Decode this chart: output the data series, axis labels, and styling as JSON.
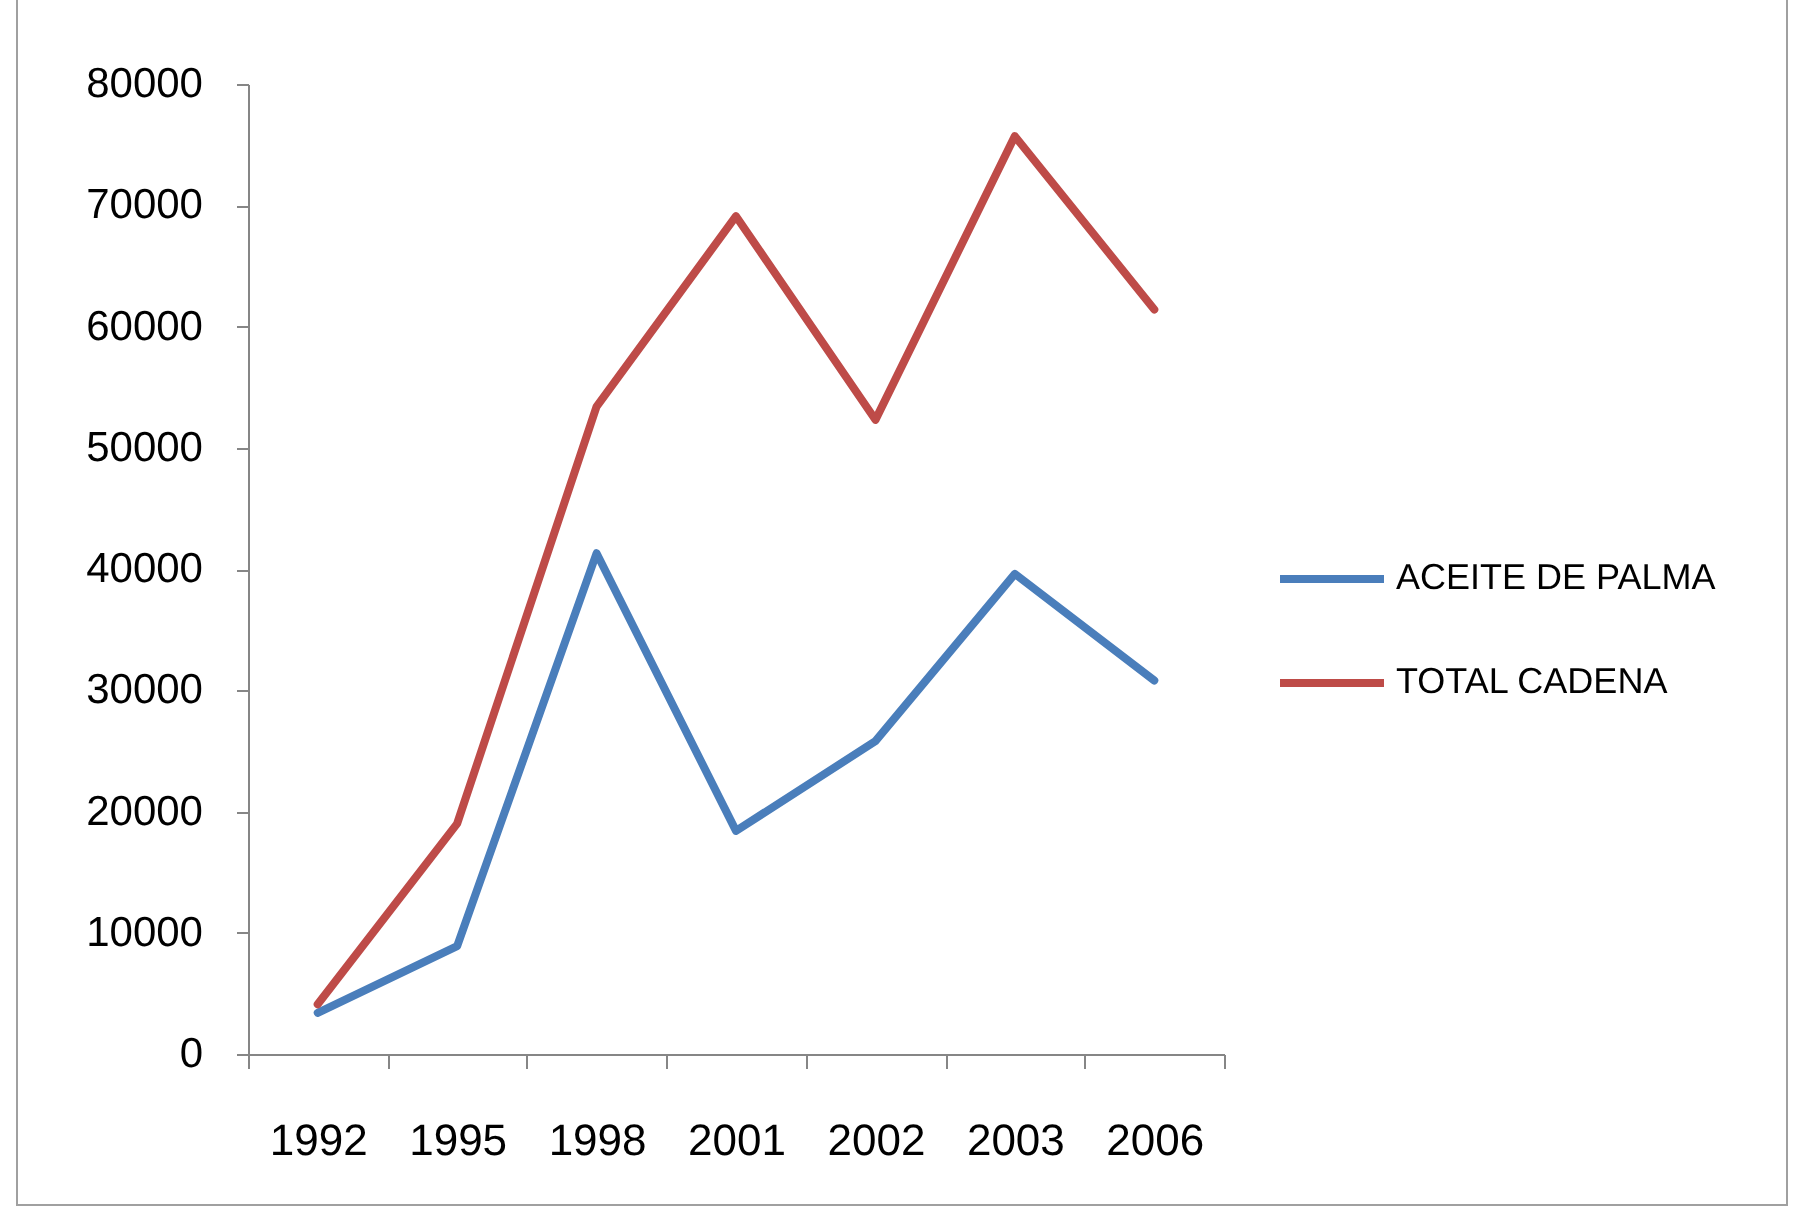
{
  "chart_data": {
    "type": "line",
    "categories": [
      "1992",
      "1995",
      "1998",
      "2001",
      "2002",
      "2003",
      "2006"
    ],
    "series": [
      {
        "name": "ACEITE DE PALMA",
        "color": "#4a7ebb",
        "values": [
          3400,
          8900,
          41300,
          18400,
          25800,
          39600,
          30800
        ]
      },
      {
        "name": "TOTAL CADENA",
        "color": "#be4b48",
        "values": [
          4100,
          19000,
          53400,
          69100,
          52300,
          75700,
          61400
        ]
      }
    ],
    "ylim": [
      0,
      80000
    ],
    "yticks": [
      0,
      10000,
      20000,
      30000,
      40000,
      50000,
      60000,
      70000,
      80000
    ],
    "legend": "right"
  }
}
